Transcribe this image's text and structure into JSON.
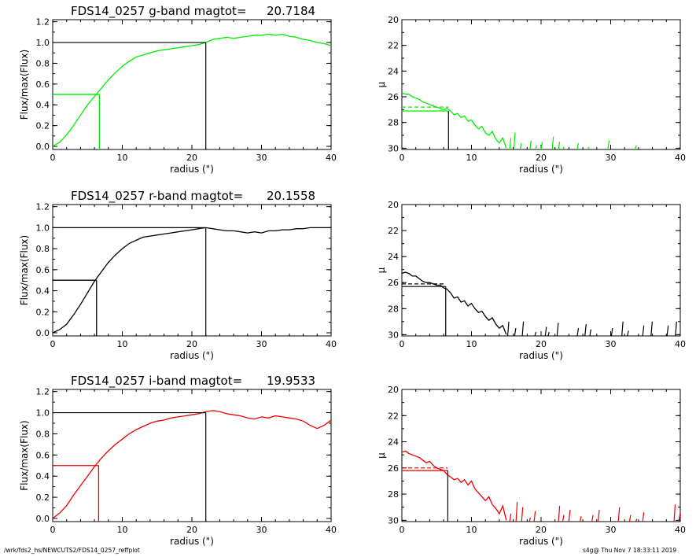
{
  "footer": {
    "path": "/wrk/fds2_hs/NEWCUTS2/FDS14_0257_reffplot",
    "stamp": "s4g@  Thu Nov  7 18:33:11 2019"
  },
  "chart_data": [
    {
      "type": "line",
      "title": "FDS14_0257 g-band  magtot=",
      "magtot": "20.7184",
      "xlabel": "radius (\")",
      "ylabel": "Flux/max(Flux)",
      "xlim": [
        0,
        40
      ],
      "ylim": [
        -0.03,
        1.22
      ],
      "xticks": [
        0,
        10,
        20,
        30,
        40
      ],
      "yticks": [
        0.0,
        0.2,
        0.4,
        0.6,
        0.8,
        1.0,
        1.2
      ],
      "color": "#00ee00",
      "series": [
        {
          "x": [
            0,
            1,
            2,
            3,
            4,
            5,
            6,
            7,
            8,
            9,
            10,
            11,
            12,
            13,
            14,
            15,
            16,
            17,
            18,
            19,
            20,
            21,
            22,
            23,
            24,
            25,
            26,
            27,
            28,
            29,
            30,
            31,
            32,
            33,
            34,
            35,
            36,
            37,
            38,
            39,
            40
          ],
          "y": [
            0.0,
            0.04,
            0.11,
            0.2,
            0.3,
            0.4,
            0.48,
            0.56,
            0.64,
            0.71,
            0.77,
            0.82,
            0.86,
            0.88,
            0.9,
            0.92,
            0.93,
            0.94,
            0.95,
            0.96,
            0.97,
            0.98,
            1.0,
            1.03,
            1.04,
            1.05,
            1.04,
            1.05,
            1.06,
            1.07,
            1.07,
            1.08,
            1.07,
            1.08,
            1.06,
            1.05,
            1.03,
            1.02,
            1.0,
            0.99,
            0.97
          ]
        }
      ],
      "half_light": {
        "x": 6.7,
        "y": 0.5
      },
      "total": {
        "x": 22,
        "y": 1.0
      }
    },
    {
      "type": "line",
      "ylabel": "µ",
      "xlabel": "radius (\")",
      "xlim": [
        0,
        40
      ],
      "ylim": [
        30.1,
        20
      ],
      "xticks": [
        0,
        10,
        20,
        30,
        40
      ],
      "yticks": [
        20,
        22,
        24,
        26,
        28,
        30
      ],
      "color": "#00ee00",
      "series": [
        {
          "x": [
            0,
            0.5,
            1,
            1.5,
            2,
            2.5,
            3,
            3.5,
            4,
            4.5,
            5,
            5.5,
            6,
            6.5,
            7,
            7.5,
            8,
            8.5,
            9,
            9.5,
            10,
            10.5,
            11,
            11.5,
            12,
            12.5,
            13,
            13.5,
            14,
            14.5,
            15
          ],
          "y": [
            25.7,
            25.8,
            25.8,
            26.0,
            26.1,
            26.2,
            26.4,
            26.5,
            26.6,
            26.7,
            26.8,
            26.9,
            27.0,
            26.9,
            27.1,
            27.4,
            27.3,
            27.6,
            27.5,
            27.9,
            27.8,
            28.2,
            28.5,
            28.3,
            28.8,
            29.0,
            28.7,
            29.3,
            29.6,
            29.2,
            30.0
          ]
        }
      ],
      "spikes": [
        [
          15.5,
          29.2
        ],
        [
          16.1,
          28.8
        ],
        [
          17.0,
          29.6
        ],
        [
          18.4,
          29.4
        ],
        [
          19.2,
          29.8
        ],
        [
          20.0,
          29.5
        ],
        [
          21.6,
          29.1
        ],
        [
          22.5,
          29.5
        ],
        [
          23.1,
          29.9
        ],
        [
          25.2,
          29.6
        ],
        [
          26.7,
          29.9
        ],
        [
          29.6,
          29.4
        ],
        [
          33.5,
          29.8
        ]
      ],
      "dashed_level": 26.8,
      "solid_level": 27.1,
      "mark_x": 6.7
    },
    {
      "type": "line",
      "title": "FDS14_0257 r-band  magtot=",
      "magtot": "20.1558",
      "xlabel": "radius (\")",
      "ylabel": "Flux/max(Flux)",
      "xlim": [
        0,
        40
      ],
      "ylim": [
        -0.03,
        1.22
      ],
      "xticks": [
        0,
        10,
        20,
        30,
        40
      ],
      "yticks": [
        0.0,
        0.2,
        0.4,
        0.6,
        0.8,
        1.0,
        1.2
      ],
      "color": "#000000",
      "series": [
        {
          "x": [
            0,
            1,
            2,
            3,
            4,
            5,
            6,
            7,
            8,
            9,
            10,
            11,
            12,
            13,
            14,
            15,
            16,
            17,
            18,
            19,
            20,
            21,
            22,
            23,
            24,
            25,
            26,
            27,
            28,
            29,
            30,
            31,
            32,
            33,
            34,
            35,
            36,
            37,
            38,
            39,
            40
          ],
          "y": [
            0.0,
            0.03,
            0.08,
            0.17,
            0.27,
            0.38,
            0.49,
            0.58,
            0.67,
            0.74,
            0.8,
            0.85,
            0.88,
            0.91,
            0.92,
            0.93,
            0.94,
            0.95,
            0.96,
            0.97,
            0.98,
            0.99,
            1.0,
            0.99,
            0.98,
            0.97,
            0.97,
            0.96,
            0.95,
            0.96,
            0.95,
            0.97,
            0.97,
            0.98,
            0.98,
            0.99,
            0.99,
            1.0,
            1.0,
            1.0,
            1.0
          ]
        }
      ],
      "half_light": {
        "x": 6.3,
        "y": 0.5
      },
      "total": {
        "x": 22,
        "y": 1.0
      }
    },
    {
      "type": "line",
      "ylabel": "µ",
      "xlabel": "radius (\")",
      "xlim": [
        0,
        40
      ],
      "ylim": [
        30.1,
        20
      ],
      "xticks": [
        0,
        10,
        20,
        30,
        40
      ],
      "yticks": [
        20,
        22,
        24,
        26,
        28,
        30
      ],
      "color": "#000000",
      "series": [
        {
          "x": [
            0,
            0.5,
            1,
            1.5,
            2,
            2.5,
            3,
            3.5,
            4,
            4.5,
            5,
            5.5,
            6,
            6.5,
            7,
            7.5,
            8,
            8.5,
            9,
            9.5,
            10,
            10.5,
            11,
            11.5,
            12,
            12.5,
            13,
            13.5,
            14,
            14.5,
            15
          ],
          "y": [
            25.3,
            25.2,
            25.3,
            25.5,
            25.5,
            25.7,
            25.9,
            26.0,
            26.0,
            26.1,
            26.2,
            26.2,
            26.4,
            26.5,
            26.8,
            27.2,
            27.1,
            27.5,
            27.4,
            27.8,
            27.6,
            28.0,
            28.3,
            28.2,
            28.6,
            28.9,
            28.7,
            29.2,
            29.5,
            29.3,
            30.0
          ]
        }
      ],
      "spikes": [
        [
          15.2,
          29.0
        ],
        [
          16.2,
          29.5
        ],
        [
          17.3,
          29.0
        ],
        [
          19.1,
          29.8
        ],
        [
          20.6,
          29.4
        ],
        [
          21.0,
          29.8
        ],
        [
          22.3,
          29.1
        ],
        [
          25.2,
          29.5
        ],
        [
          26.3,
          29.2
        ],
        [
          27.0,
          29.6
        ],
        [
          30.1,
          29.5
        ],
        [
          31.6,
          29.0
        ],
        [
          32.4,
          29.7
        ],
        [
          34.6,
          29.3
        ],
        [
          35.8,
          29.0
        ],
        [
          38.1,
          29.3
        ],
        [
          39.3,
          29.0
        ]
      ],
      "dashed_level": 26.1,
      "solid_level": 26.3,
      "mark_x": 6.3
    },
    {
      "type": "line",
      "title": "FDS14_0257 i-band  magtot=",
      "magtot": "19.9533",
      "xlabel": "radius (\")",
      "ylabel": "Flux/max(Flux)",
      "xlim": [
        0,
        40
      ],
      "ylim": [
        -0.03,
        1.22
      ],
      "xticks": [
        0,
        10,
        20,
        30,
        40
      ],
      "yticks": [
        0.0,
        0.2,
        0.4,
        0.6,
        0.8,
        1.0,
        1.2
      ],
      "color": "#ee0000",
      "series": [
        {
          "x": [
            0,
            1,
            2,
            3,
            4,
            5,
            6,
            7,
            8,
            9,
            10,
            11,
            12,
            13,
            14,
            15,
            16,
            17,
            18,
            19,
            20,
            21,
            22,
            23,
            24,
            25,
            26,
            27,
            28,
            29,
            30,
            31,
            32,
            33,
            34,
            35,
            36,
            37,
            38,
            39,
            40
          ],
          "y": [
            0.0,
            0.05,
            0.12,
            0.22,
            0.31,
            0.4,
            0.49,
            0.57,
            0.64,
            0.7,
            0.75,
            0.8,
            0.84,
            0.87,
            0.9,
            0.92,
            0.93,
            0.95,
            0.96,
            0.97,
            0.98,
            0.99,
            1.01,
            1.02,
            1.01,
            0.99,
            0.98,
            0.97,
            0.95,
            0.94,
            0.96,
            0.95,
            0.97,
            0.96,
            0.95,
            0.94,
            0.92,
            0.88,
            0.85,
            0.88,
            0.93
          ]
        }
      ],
      "half_light": {
        "x": 6.6,
        "y": 0.5
      },
      "total": {
        "x": 22,
        "y": 1.0
      }
    },
    {
      "type": "line",
      "ylabel": "µ",
      "xlabel": "radius (\")",
      "xlim": [
        0,
        40
      ],
      "ylim": [
        30.1,
        20
      ],
      "xticks": [
        0,
        10,
        20,
        30,
        40
      ],
      "yticks": [
        20,
        22,
        24,
        26,
        28,
        30
      ],
      "color": "#ee0000",
      "series": [
        {
          "x": [
            0,
            0.5,
            1,
            1.5,
            2,
            2.5,
            3,
            3.5,
            4,
            4.5,
            5,
            5.5,
            6,
            6.5,
            7,
            7.5,
            8,
            8.5,
            9,
            9.5,
            10,
            10.5,
            11,
            11.5,
            12,
            12.5,
            13,
            13.5,
            14,
            14.5,
            15
          ],
          "y": [
            24.8,
            24.7,
            24.9,
            25.0,
            25.1,
            25.2,
            25.4,
            25.6,
            25.5,
            25.8,
            26.0,
            26.1,
            26.2,
            26.5,
            26.7,
            26.9,
            26.8,
            27.1,
            26.9,
            27.3,
            27.0,
            27.6,
            27.9,
            28.2,
            28.5,
            28.2,
            28.8,
            29.1,
            29.5,
            28.9,
            30.0
          ]
        }
      ],
      "spikes": [
        [
          15.5,
          29.5
        ],
        [
          16.4,
          28.6
        ],
        [
          17.2,
          29.0
        ],
        [
          18.3,
          29.8
        ],
        [
          19.0,
          29.3
        ],
        [
          22.5,
          28.9
        ],
        [
          23.1,
          29.6
        ],
        [
          24.0,
          29.2
        ],
        [
          25.6,
          29.7
        ],
        [
          27.3,
          29.6
        ],
        [
          28.2,
          29.2
        ],
        [
          31.1,
          29.0
        ],
        [
          32.7,
          29.6
        ],
        [
          33.6,
          29.9
        ],
        [
          34.6,
          29.4
        ],
        [
          39.1,
          28.8
        ],
        [
          39.8,
          29.5
        ]
      ],
      "dashed_level": 26.0,
      "solid_level": 26.2,
      "mark_x": 6.6
    }
  ]
}
